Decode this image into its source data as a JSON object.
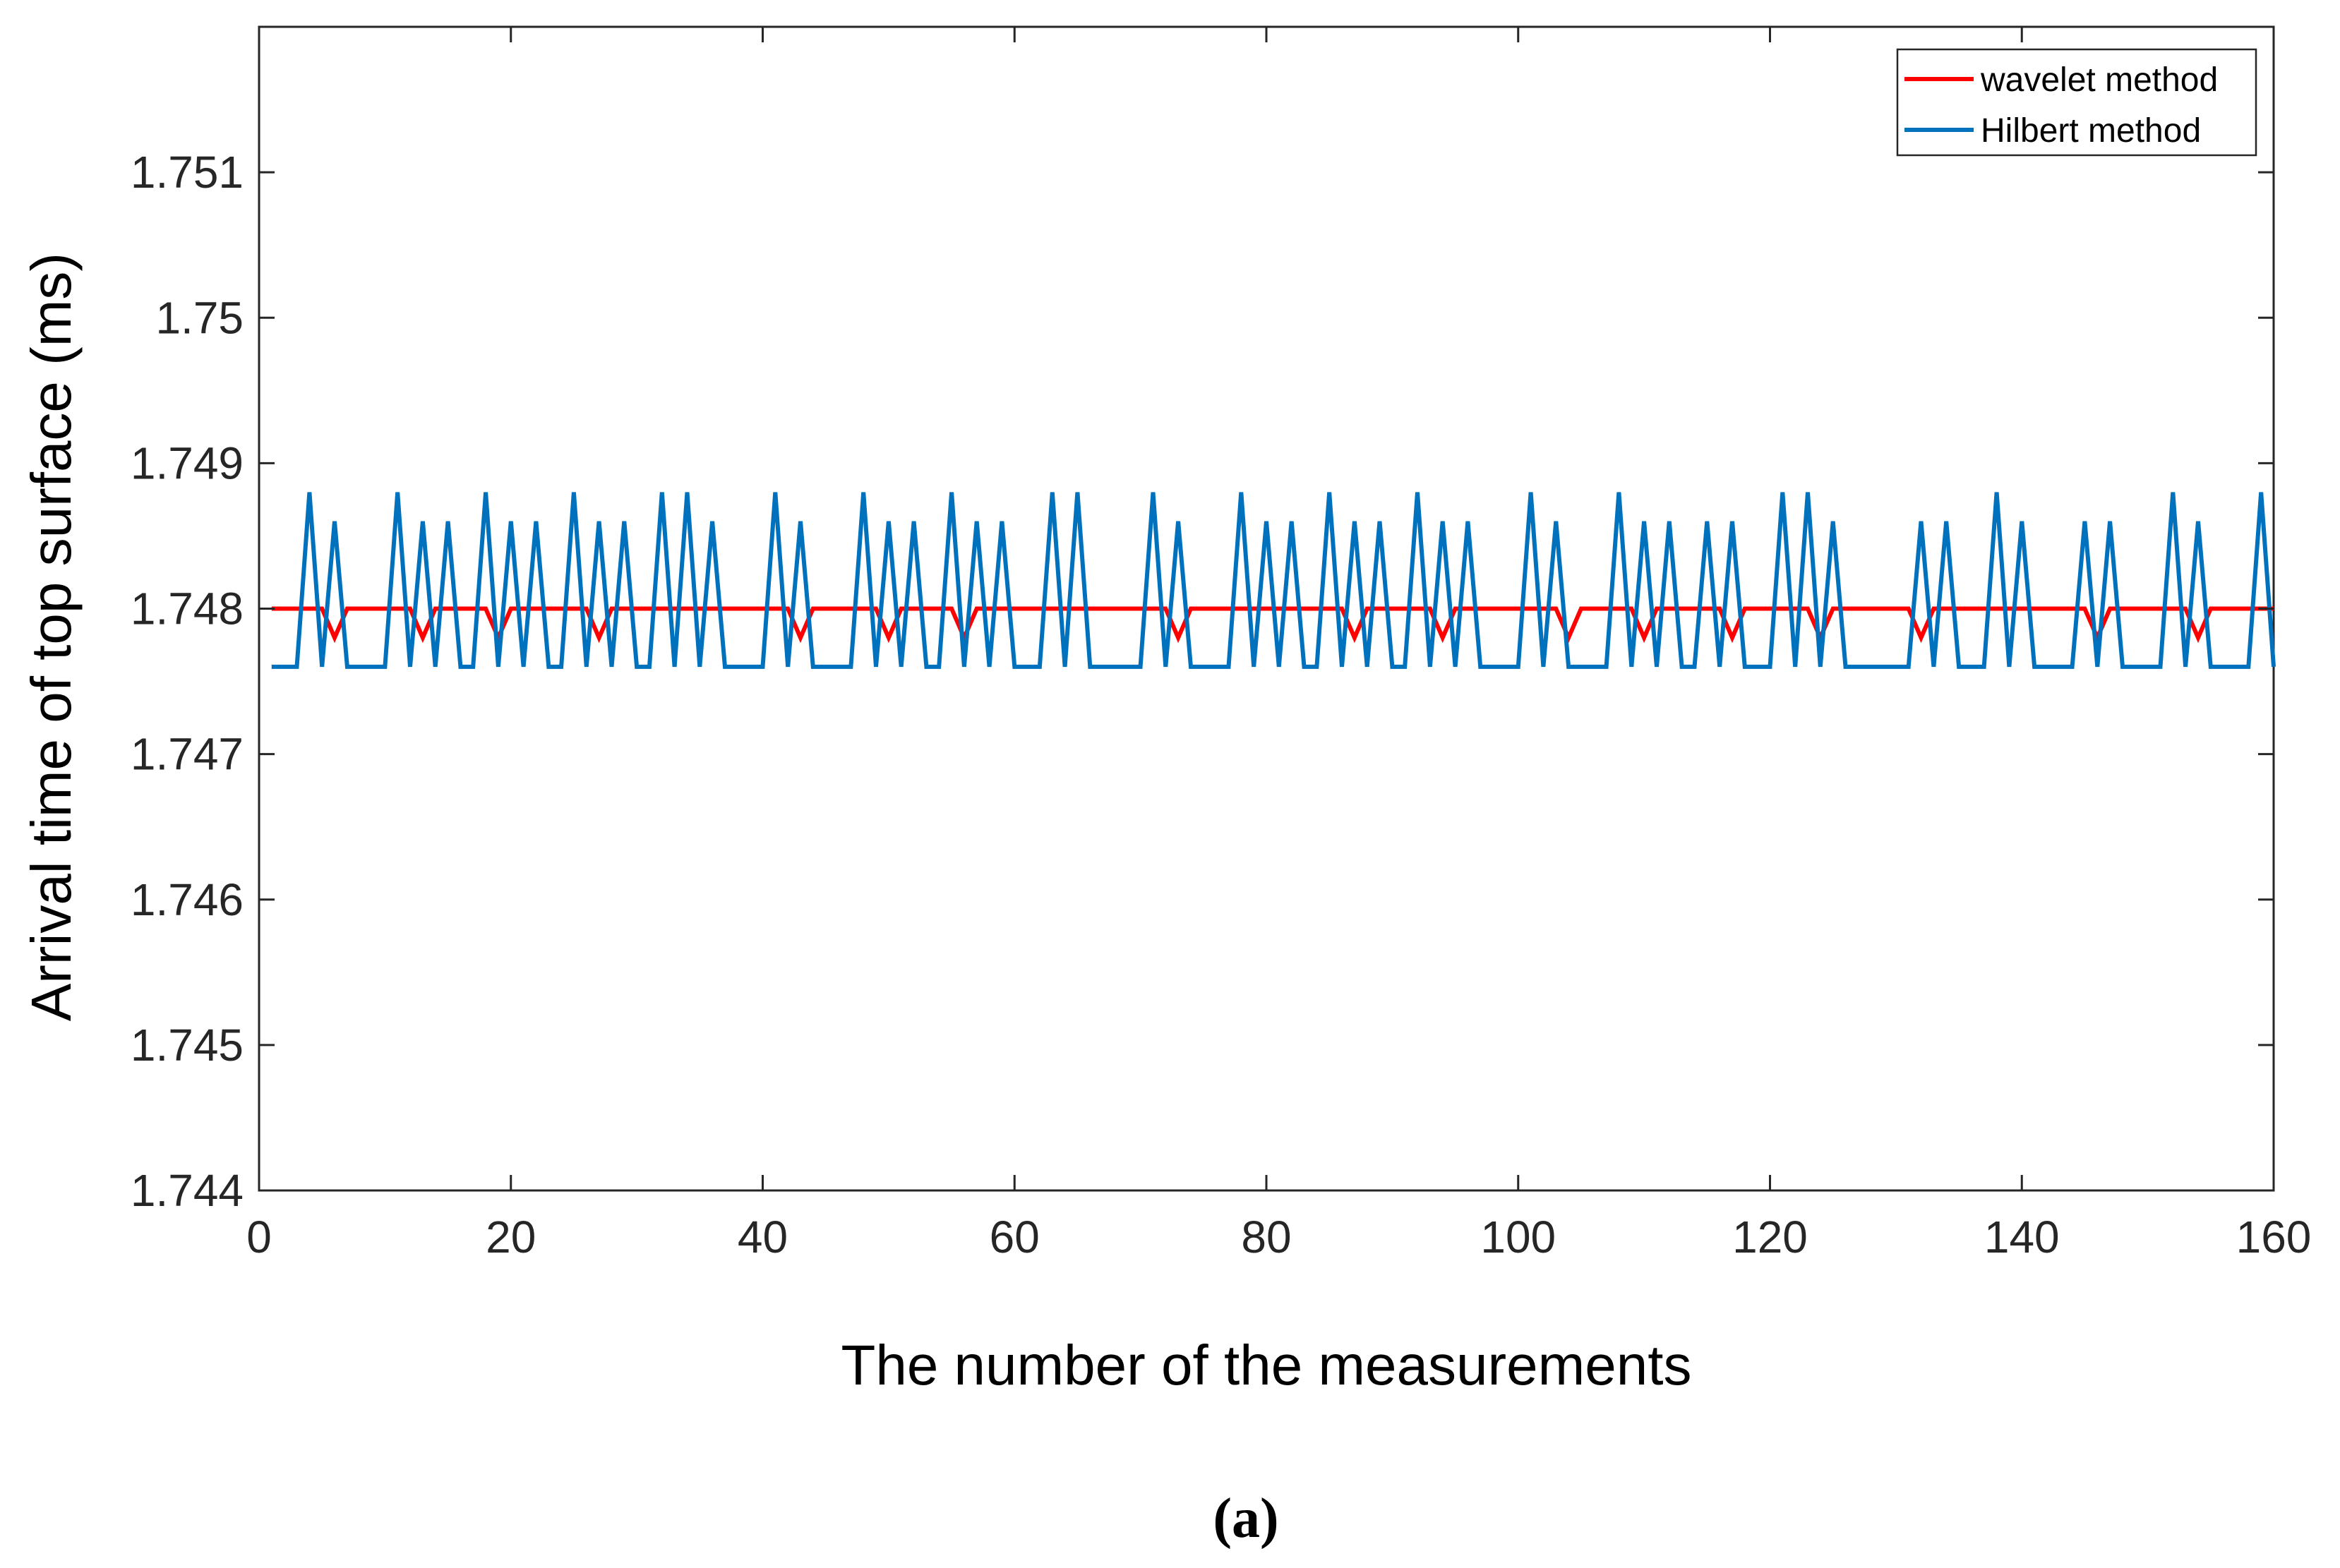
{
  "chart_data": {
    "type": "line",
    "title": "",
    "xlabel": "The number of the measurements",
    "ylabel": "Arrival time of top surface (ms)",
    "caption": "(a)",
    "xlim": [
      0,
      160
    ],
    "ylim": [
      1.744,
      1.752
    ],
    "xticks": [
      0,
      20,
      40,
      60,
      80,
      100,
      120,
      140,
      160
    ],
    "xtick_labels": [
      "0",
      "20",
      "40",
      "60",
      "80",
      "100",
      "120",
      "140",
      "160"
    ],
    "yticks": [
      1.744,
      1.745,
      1.746,
      1.747,
      1.748,
      1.749,
      1.75,
      1.751
    ],
    "ytick_labels": [
      "1.744",
      "1.745",
      "1.746",
      "1.747",
      "1.748",
      "1.749",
      "1.75",
      "1.751"
    ],
    "grid": false,
    "legend_position": "top-right",
    "x_start": 1,
    "series": [
      {
        "name": "wavelet method",
        "color": "#FF0000",
        "values": [
          1.748,
          1.748,
          1.748,
          1.748,
          1.748,
          1.7478,
          1.748,
          1.748,
          1.748,
          1.748,
          1.748,
          1.748,
          1.7478,
          1.748,
          1.748,
          1.748,
          1.748,
          1.748,
          1.7478,
          1.748,
          1.748,
          1.748,
          1.748,
          1.748,
          1.748,
          1.748,
          1.7478,
          1.748,
          1.748,
          1.748,
          1.748,
          1.748,
          1.748,
          1.748,
          1.748,
          1.748,
          1.748,
          1.748,
          1.748,
          1.748,
          1.748,
          1.748,
          1.7478,
          1.748,
          1.748,
          1.748,
          1.748,
          1.748,
          1.748,
          1.7478,
          1.748,
          1.748,
          1.748,
          1.748,
          1.748,
          1.7478,
          1.748,
          1.748,
          1.748,
          1.748,
          1.748,
          1.748,
          1.748,
          1.748,
          1.748,
          1.748,
          1.748,
          1.748,
          1.748,
          1.748,
          1.748,
          1.748,
          1.7478,
          1.748,
          1.748,
          1.748,
          1.748,
          1.748,
          1.748,
          1.748,
          1.748,
          1.748,
          1.748,
          1.748,
          1.748,
          1.748,
          1.7478,
          1.748,
          1.748,
          1.748,
          1.748,
          1.748,
          1.748,
          1.7478,
          1.748,
          1.748,
          1.748,
          1.748,
          1.748,
          1.748,
          1.748,
          1.748,
          1.748,
          1.7478,
          1.748,
          1.748,
          1.748,
          1.748,
          1.748,
          1.7478,
          1.748,
          1.748,
          1.748,
          1.748,
          1.748,
          1.748,
          1.7478,
          1.748,
          1.748,
          1.748,
          1.748,
          1.748,
          1.748,
          1.7478,
          1.748,
          1.748,
          1.748,
          1.748,
          1.748,
          1.748,
          1.748,
          1.7478,
          1.748,
          1.748,
          1.748,
          1.748,
          1.748,
          1.748,
          1.748,
          1.748,
          1.748,
          1.748,
          1.748,
          1.748,
          1.748,
          1.7478,
          1.748,
          1.748,
          1.748,
          1.748,
          1.748,
          1.748,
          1.748,
          1.7478,
          1.748,
          1.748,
          1.748,
          1.748,
          1.748,
          1.748
        ]
      },
      {
        "name": "Hilbert method",
        "color": "#0072BD",
        "values": [
          1.7476,
          1.7476,
          1.7476,
          1.7488,
          1.7476,
          1.7486,
          1.7476,
          1.7476,
          1.7476,
          1.7476,
          1.7488,
          1.7476,
          1.7486,
          1.7476,
          1.7486,
          1.7476,
          1.7476,
          1.7488,
          1.7476,
          1.7486,
          1.7476,
          1.7486,
          1.7476,
          1.7476,
          1.7488,
          1.7476,
          1.7486,
          1.7476,
          1.7486,
          1.7476,
          1.7476,
          1.7488,
          1.7476,
          1.7488,
          1.7476,
          1.7486,
          1.7476,
          1.7476,
          1.7476,
          1.7476,
          1.7488,
          1.7476,
          1.7486,
          1.7476,
          1.7476,
          1.7476,
          1.7476,
          1.7488,
          1.7476,
          1.7486,
          1.7476,
          1.7486,
          1.7476,
          1.7476,
          1.7488,
          1.7476,
          1.7486,
          1.7476,
          1.7486,
          1.7476,
          1.7476,
          1.7476,
          1.7488,
          1.7476,
          1.7488,
          1.7476,
          1.7476,
          1.7476,
          1.7476,
          1.7476,
          1.7488,
          1.7476,
          1.7486,
          1.7476,
          1.7476,
          1.7476,
          1.7476,
          1.7488,
          1.7476,
          1.7486,
          1.7476,
          1.7486,
          1.7476,
          1.7476,
          1.7488,
          1.7476,
          1.7486,
          1.7476,
          1.7486,
          1.7476,
          1.7476,
          1.7488,
          1.7476,
          1.7486,
          1.7476,
          1.7486,
          1.7476,
          1.7476,
          1.7476,
          1.7476,
          1.7488,
          1.7476,
          1.7486,
          1.7476,
          1.7476,
          1.7476,
          1.7476,
          1.7488,
          1.7476,
          1.7486,
          1.7476,
          1.7486,
          1.7476,
          1.7476,
          1.7486,
          1.7476,
          1.7486,
          1.7476,
          1.7476,
          1.7476,
          1.7488,
          1.7476,
          1.7488,
          1.7476,
          1.7486,
          1.7476,
          1.7476,
          1.7476,
          1.7476,
          1.7476,
          1.7476,
          1.7486,
          1.7476,
          1.7486,
          1.7476,
          1.7476,
          1.7476,
          1.7488,
          1.7476,
          1.7486,
          1.7476,
          1.7476,
          1.7476,
          1.7476,
          1.7486,
          1.7476,
          1.7486,
          1.7476,
          1.7476,
          1.7476,
          1.7476,
          1.7488,
          1.7476,
          1.7486,
          1.7476,
          1.7476,
          1.7476,
          1.7476,
          1.7488,
          1.7476
        ]
      }
    ]
  }
}
